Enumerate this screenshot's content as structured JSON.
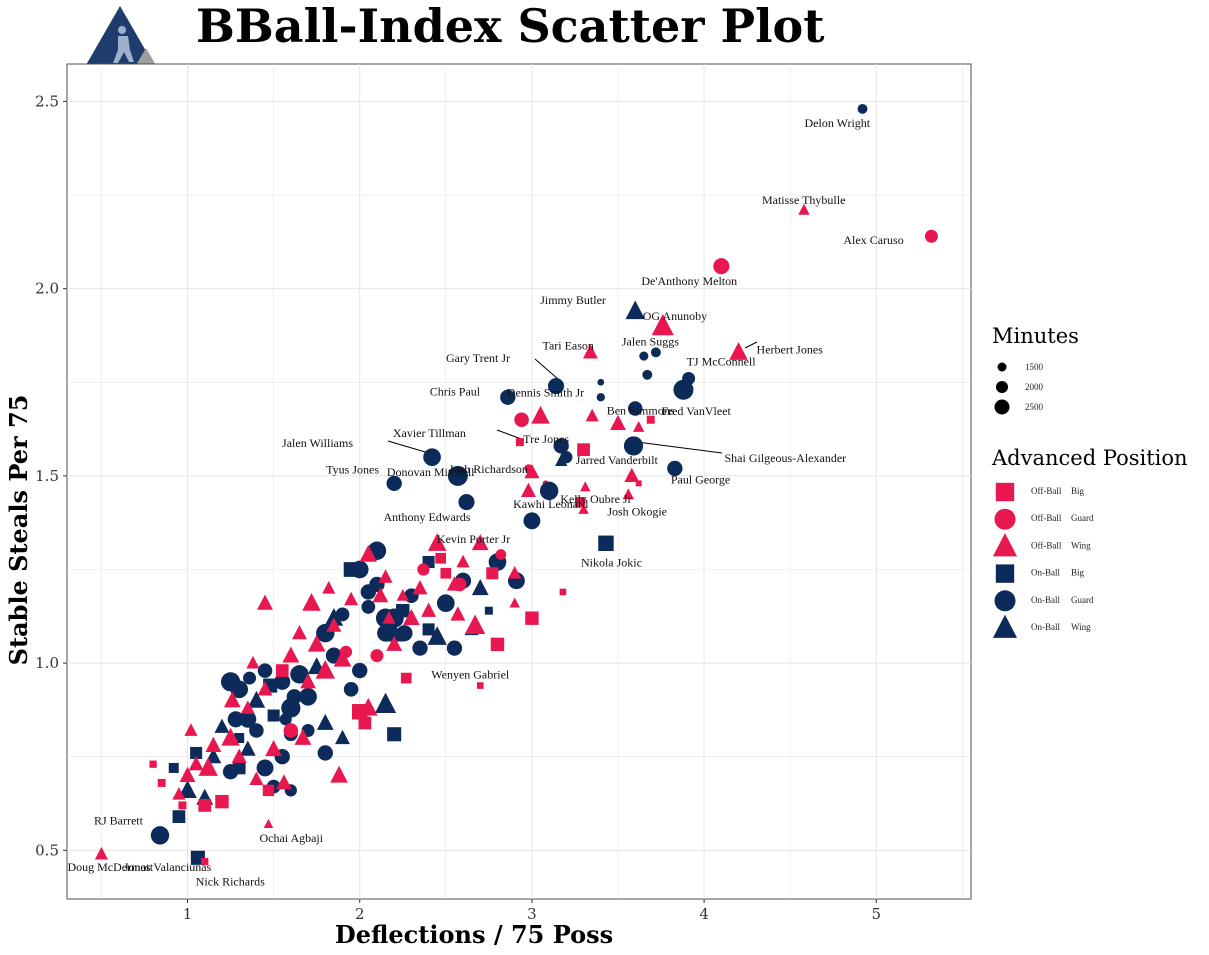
{
  "chart_data": {
    "type": "scatter",
    "title": "BBall-Index Scatter Plot",
    "xlabel": "Deflections / 75 Poss",
    "ylabel": "Stable Steals Per 75",
    "xlim": [
      0.3,
      5.55
    ],
    "ylim": [
      0.37,
      2.6
    ],
    "xticks": [
      1,
      2,
      3,
      4,
      5
    ],
    "yticks": [
      0.5,
      1.0,
      1.5,
      2.0,
      2.5
    ],
    "ytick_labels": [
      "0.5",
      "1.0",
      "1.5",
      "2.0",
      "2.5"
    ],
    "colors": {
      "off": "#E8174F",
      "on": "#0D2B5A",
      "grid": "#E5E5E5",
      "logo_blue": "#1F3C6E",
      "logo_gray": "#9E9E9E"
    },
    "legend_minutes": {
      "title": "Minutes",
      "items": [
        "1500",
        "2000",
        "2500"
      ]
    },
    "legend_position": {
      "title": "Advanced Position",
      "items": [
        {
          "group": "Off-Ball",
          "role": "Big",
          "shape": "square",
          "color": "off"
        },
        {
          "group": "Off-Ball",
          "role": "Guard",
          "shape": "circle",
          "color": "off"
        },
        {
          "group": "Off-Ball",
          "role": "Wing",
          "shape": "triangle",
          "color": "off"
        },
        {
          "group": "On-Ball",
          "role": "Big",
          "shape": "square",
          "color": "on"
        },
        {
          "group": "On-Ball",
          "role": "Guard",
          "shape": "circle",
          "color": "on"
        },
        {
          "group": "On-Ball",
          "role": "Wing",
          "shape": "triangle",
          "color": "on"
        }
      ]
    },
    "labeled_players": [
      {
        "name": "Delon Wright",
        "x": 4.92,
        "y": 2.48,
        "pos": "On-Ball Guard",
        "minutes": 1300
      },
      {
        "name": "Matisse Thybulle",
        "x": 4.58,
        "y": 2.21,
        "pos": "Off-Ball Wing",
        "minutes": 1300
      },
      {
        "name": "Alex Caruso",
        "x": 5.32,
        "y": 2.14,
        "pos": "Off-Ball Guard",
        "minutes": 1700
      },
      {
        "name": "De'Anthony Melton",
        "x": 4.1,
        "y": 2.06,
        "pos": "Off-Ball Guard",
        "minutes": 2100
      },
      {
        "name": "Jimmy Butler",
        "x": 3.6,
        "y": 1.94,
        "pos": "On-Ball Wing",
        "minutes": 2200
      },
      {
        "name": "OG Anunoby",
        "x": 3.76,
        "y": 1.9,
        "pos": "Off-Ball Wing",
        "minutes": 2500
      },
      {
        "name": "Herbert Jones",
        "x": 4.2,
        "y": 1.83,
        "pos": "Off-Ball Wing",
        "minutes": 2100
      },
      {
        "name": "Tari Eason",
        "x": 3.34,
        "y": 1.83,
        "pos": "Off-Ball Wing",
        "minutes": 1700
      },
      {
        "name": "Jalen Suggs",
        "x": 3.72,
        "y": 1.83,
        "pos": "On-Ball Guard",
        "minutes": 1300
      },
      {
        "name": "TJ McConnell",
        "x": 3.91,
        "y": 1.76,
        "pos": "On-Ball Guard",
        "minutes": 1700
      },
      {
        "name": "Gary Trent Jr",
        "x": 3.14,
        "y": 1.74,
        "pos": "On-Ball Guard",
        "minutes": 2100
      },
      {
        "name": "Dennis Smith Jr",
        "x": 3.4,
        "y": 1.71,
        "pos": "On-Ball Guard",
        "minutes": 1100
      },
      {
        "name": "Chris Paul",
        "x": 2.86,
        "y": 1.71,
        "pos": "On-Ball Guard",
        "minutes": 2000
      },
      {
        "name": "Fred VanVleet",
        "x": 3.88,
        "y": 1.73,
        "pos": "On-Ball Guard",
        "minutes": 2600
      },
      {
        "name": "Tre Jones",
        "x": 3.17,
        "y": 1.58,
        "pos": "On-Ball Guard",
        "minutes": 2000
      },
      {
        "name": "Ben Simmons",
        "x": 3.69,
        "y": 1.65,
        "pos": "Off-Ball Big",
        "minutes": 1200
      },
      {
        "name": "Xavier Tillman",
        "x": 2.93,
        "y": 1.59,
        "pos": "Off-Ball Big",
        "minutes": 1200
      },
      {
        "name": "Jalen Williams",
        "x": 2.42,
        "y": 1.55,
        "pos": "On-Ball Guard",
        "minutes": 2300
      },
      {
        "name": "Shai Gilgeous-Alexander",
        "x": 3.59,
        "y": 1.58,
        "pos": "On-Ball Guard",
        "minutes": 2500
      },
      {
        "name": "Josh Richardson",
        "x": 3.0,
        "y": 1.51,
        "pos": "Off-Ball Wing",
        "minutes": 1700
      },
      {
        "name": "Donovan Mitchell",
        "x": 2.57,
        "y": 1.5,
        "pos": "On-Ball Guard",
        "minutes": 2600
      },
      {
        "name": "Jarred Vanderbilt",
        "x": 3.58,
        "y": 1.5,
        "pos": "Off-Ball Wing",
        "minutes": 1700
      },
      {
        "name": "Tyus Jones",
        "x": 2.2,
        "y": 1.48,
        "pos": "On-Ball Guard",
        "minutes": 2000
      },
      {
        "name": "Paul George",
        "x": 3.83,
        "y": 1.52,
        "pos": "On-Ball Guard",
        "minutes": 2000
      },
      {
        "name": "Kawhi Leonard",
        "x": 3.1,
        "y": 1.46,
        "pos": "On-Ball Guard",
        "minutes": 2400
      },
      {
        "name": "Kelly Oubre Jr",
        "x": 3.31,
        "y": 1.47,
        "pos": "Off-Ball Wing",
        "minutes": 1200
      },
      {
        "name": "Anthony Edwards",
        "x": 2.62,
        "y": 1.43,
        "pos": "On-Ball Guard",
        "minutes": 2100
      },
      {
        "name": "Josh Okogie",
        "x": 3.56,
        "y": 1.45,
        "pos": "Off-Ball Wing",
        "minutes": 1300
      },
      {
        "name": "Kevin Porter Jr",
        "x": 3.0,
        "y": 1.38,
        "pos": "On-Ball Guard",
        "minutes": 2200
      },
      {
        "name": "Nikola Jokic",
        "x": 3.43,
        "y": 1.32,
        "pos": "On-Ball Big",
        "minutes": 2300
      },
      {
        "name": "Wenyen Gabriel",
        "x": 2.7,
        "y": 0.94,
        "pos": "Off-Ball Big",
        "minutes": 1000
      },
      {
        "name": "RJ Barrett",
        "x": 0.84,
        "y": 0.54,
        "pos": "On-Ball Guard",
        "minutes": 2400
      },
      {
        "name": "Ochai Agbaji",
        "x": 1.47,
        "y": 0.57,
        "pos": "Off-Ball Wing",
        "minutes": 1100
      },
      {
        "name": "Jonas Valanciunas",
        "x": 1.06,
        "y": 0.48,
        "pos": "On-Ball Big",
        "minutes": 2100
      },
      {
        "name": "Doug McDermott",
        "x": 0.5,
        "y": 0.49,
        "pos": "Off-Ball Wing",
        "minutes": 1500
      },
      {
        "name": "Nick Richards",
        "x": 1.1,
        "y": 0.47,
        "pos": "Off-Ball Big",
        "minutes": 1100
      }
    ],
    "other_players": [
      [
        1.25,
        0.95,
        "ong",
        2500
      ],
      [
        1.3,
        0.93,
        "ong",
        2300
      ],
      [
        1.35,
        0.85,
        "ong",
        2200
      ],
      [
        1.4,
        0.9,
        "onw",
        2000
      ],
      [
        1.45,
        0.98,
        "ong",
        1900
      ],
      [
        1.5,
        0.86,
        "onb",
        1800
      ],
      [
        1.55,
        0.95,
        "ong",
        2100
      ],
      [
        1.6,
        0.88,
        "ong",
        2500
      ],
      [
        1.65,
        0.97,
        "ong",
        2400
      ],
      [
        1.7,
        0.82,
        "ong",
        1700
      ],
      [
        1.75,
        0.99,
        "onw",
        2000
      ],
      [
        1.8,
        1.08,
        "ong",
        2400
      ],
      [
        1.85,
        1.02,
        "ong",
        2100
      ],
      [
        1.9,
        1.13,
        "ong",
        1800
      ],
      [
        1.95,
        0.93,
        "ong",
        1900
      ],
      [
        2.0,
        1.25,
        "ong",
        2300
      ],
      [
        2.05,
        1.19,
        "ong",
        2000
      ],
      [
        2.1,
        1.3,
        "ong",
        2400
      ],
      [
        2.15,
        1.12,
        "ong",
        2500
      ],
      [
        2.2,
        1.08,
        "onw",
        2300
      ],
      [
        2.25,
        1.14,
        "onb",
        2000
      ],
      [
        2.3,
        1.18,
        "ong",
        1900
      ],
      [
        2.35,
        1.04,
        "ong",
        2000
      ],
      [
        2.4,
        1.27,
        "onb",
        1800
      ],
      [
        2.45,
        1.07,
        "onw",
        2200
      ],
      [
        2.5,
        1.16,
        "ong",
        2300
      ],
      [
        2.55,
        1.04,
        "ong",
        2000
      ],
      [
        2.6,
        1.22,
        "ong",
        2100
      ],
      [
        2.7,
        1.2,
        "onw",
        1900
      ],
      [
        2.8,
        1.27,
        "ong",
        2300
      ],
      [
        2.91,
        1.22,
        "ong",
        2200
      ],
      [
        1.95,
        1.25,
        "onb",
        2200
      ],
      [
        2.1,
        1.21,
        "ong",
        2000
      ],
      [
        2.05,
        1.15,
        "ong",
        1800
      ],
      [
        2.2,
        1.12,
        "ong",
        2500
      ],
      [
        2.15,
        1.08,
        "ong",
        2200
      ],
      [
        1.85,
        1.12,
        "onw",
        2100
      ],
      [
        1.7,
        0.91,
        "ong",
        2300
      ],
      [
        1.8,
        0.84,
        "onw",
        1900
      ],
      [
        1.6,
        0.81,
        "ong",
        1800
      ],
      [
        1.55,
        0.75,
        "ong",
        2000
      ],
      [
        1.45,
        0.72,
        "ong",
        2200
      ],
      [
        1.3,
        0.72,
        "onb",
        1900
      ],
      [
        1.25,
        0.71,
        "ong",
        2000
      ],
      [
        1.15,
        0.75,
        "onw",
        1800
      ],
      [
        1.05,
        0.76,
        "onb",
        1800
      ],
      [
        0.92,
        0.72,
        "onb",
        1500
      ],
      [
        1.0,
        0.66,
        "onw",
        2100
      ],
      [
        1.1,
        0.64,
        "onw",
        1900
      ],
      [
        0.95,
        0.59,
        "onb",
        1900
      ],
      [
        1.5,
        0.67,
        "ong",
        1800
      ],
      [
        1.6,
        0.66,
        "ong",
        1600
      ],
      [
        1.8,
        0.76,
        "ong",
        2000
      ],
      [
        1.9,
        0.8,
        "onw",
        1700
      ],
      [
        2.2,
        0.81,
        "onb",
        2100
      ],
      [
        2.15,
        0.89,
        "onw",
        2400
      ],
      [
        1.4,
        0.82,
        "ong",
        1900
      ],
      [
        1.35,
        0.77,
        "onw",
        1800
      ],
      [
        1.2,
        0.83,
        "onw",
        1700
      ],
      [
        1.28,
        0.85,
        "ong",
        2100
      ],
      [
        1.62,
        0.91,
        "ong",
        2000
      ],
      [
        1.48,
        0.94,
        "onb",
        2100
      ],
      [
        1.57,
        0.85,
        "ong",
        1600
      ],
      [
        1.3,
        0.8,
        "onb",
        1500
      ],
      [
        1.36,
        0.96,
        "ong",
        1700
      ],
      [
        2.0,
        0.98,
        "ong",
        2000
      ],
      [
        2.26,
        1.08,
        "ong",
        2100
      ],
      [
        2.4,
        1.09,
        "onb",
        1800
      ],
      [
        2.65,
        1.09,
        "onw",
        1600
      ],
      [
        2.75,
        1.14,
        "onb",
        1200
      ],
      [
        3.6,
        1.68,
        "ong",
        1900
      ],
      [
        3.67,
        1.77,
        "ong",
        1300
      ],
      [
        3.65,
        1.82,
        "ong",
        1200
      ],
      [
        3.4,
        1.75,
        "ong",
        900
      ],
      [
        3.2,
        1.55,
        "ong",
        1600
      ],
      [
        3.17,
        1.54,
        "onw",
        1400
      ],
      [
        1.0,
        0.7,
        "offw",
        1800
      ],
      [
        1.1,
        0.62,
        "offb",
        1900
      ],
      [
        1.2,
        0.63,
        "offb",
        2000
      ],
      [
        1.3,
        0.75,
        "offw",
        1700
      ],
      [
        1.4,
        0.69,
        "offw",
        1600
      ],
      [
        1.5,
        0.77,
        "offw",
        1900
      ],
      [
        1.6,
        0.82,
        "offg",
        1900
      ],
      [
        1.7,
        0.95,
        "offw",
        1800
      ],
      [
        1.8,
        0.98,
        "offw",
        2200
      ],
      [
        1.9,
        1.01,
        "offw",
        2000
      ],
      [
        2.0,
        0.87,
        "offb",
        2300
      ],
      [
        2.05,
        0.88,
        "offw",
        2100
      ],
      [
        2.1,
        1.02,
        "offg",
        1700
      ],
      [
        2.2,
        1.05,
        "offw",
        1800
      ],
      [
        2.3,
        1.12,
        "offw",
        1900
      ],
      [
        2.4,
        1.14,
        "offw",
        1700
      ],
      [
        2.5,
        1.24,
        "offb",
        1600
      ],
      [
        2.6,
        1.27,
        "offw",
        1500
      ],
      [
        2.7,
        1.32,
        "offw",
        1900
      ],
      [
        2.8,
        1.05,
        "offb",
        2000
      ],
      [
        2.9,
        1.16,
        "offw",
        1200
      ],
      [
        3.0,
        1.12,
        "offb",
        2000
      ],
      [
        2.55,
        1.21,
        "offw",
        1700
      ],
      [
        2.45,
        1.32,
        "offw",
        2100
      ],
      [
        2.35,
        1.2,
        "offw",
        1700
      ],
      [
        2.25,
        1.18,
        "offw",
        1400
      ],
      [
        2.15,
        1.23,
        "offw",
        1600
      ],
      [
        2.05,
        1.29,
        "offw",
        2000
      ],
      [
        1.95,
        1.17,
        "offw",
        1600
      ],
      [
        1.85,
        1.1,
        "offw",
        1700
      ],
      [
        1.75,
        1.05,
        "offw",
        2000
      ],
      [
        1.65,
        1.08,
        "offw",
        1700
      ],
      [
        1.55,
        0.98,
        "offb",
        1900
      ],
      [
        1.45,
        0.93,
        "offw",
        1700
      ],
      [
        1.35,
        0.88,
        "offw",
        1600
      ],
      [
        1.25,
        0.8,
        "offw",
        2100
      ],
      [
        1.15,
        0.78,
        "offw",
        1800
      ],
      [
        1.05,
        0.73,
        "offw",
        1700
      ],
      [
        0.95,
        0.65,
        "offw",
        1500
      ],
      [
        0.85,
        0.68,
        "offb",
        1200
      ],
      [
        0.8,
        0.73,
        "offb",
        1100
      ],
      [
        0.97,
        0.62,
        "offb",
        1200
      ],
      [
        1.47,
        0.66,
        "offb",
        1700
      ],
      [
        1.56,
        0.68,
        "offw",
        1800
      ],
      [
        1.67,
        0.8,
        "offw",
        1900
      ],
      [
        1.88,
        0.7,
        "offw",
        2000
      ],
      [
        2.03,
        0.84,
        "offb",
        1900
      ],
      [
        2.27,
        0.96,
        "offb",
        1600
      ],
      [
        2.17,
        1.12,
        "offw",
        1500
      ],
      [
        2.37,
        1.25,
        "offg",
        1600
      ],
      [
        2.47,
        1.28,
        "offb",
        1600
      ],
      [
        2.57,
        1.13,
        "offw",
        1700
      ],
      [
        2.67,
        1.1,
        "offw",
        2300
      ],
      [
        2.77,
        1.24,
        "offb",
        1800
      ],
      [
        2.82,
        1.29,
        "offg",
        1400
      ],
      [
        2.9,
        1.24,
        "offw",
        1500
      ],
      [
        3.3,
        1.41,
        "offw",
        1200
      ],
      [
        3.28,
        1.43,
        "offb",
        1500
      ],
      [
        3.5,
        1.64,
        "offw",
        1800
      ],
      [
        3.62,
        1.48,
        "offb",
        900
      ],
      [
        3.05,
        1.66,
        "offw",
        2100
      ],
      [
        3.08,
        1.48,
        "offg",
        800
      ],
      [
        3.35,
        1.66,
        "offw",
        1500
      ],
      [
        3.62,
        1.63,
        "offw",
        1300
      ],
      [
        2.94,
        1.65,
        "offg",
        1900
      ],
      [
        3.3,
        1.57,
        "offb",
        1900
      ],
      [
        3.18,
        1.19,
        "offb",
        1000
      ],
      [
        2.98,
        1.46,
        "offw",
        1700
      ],
      [
        2.98,
        1.52,
        "offg",
        1100
      ],
      [
        2.58,
        1.21,
        "offg",
        1800
      ],
      [
        1.72,
        1.16,
        "offw",
        2100
      ],
      [
        1.82,
        1.2,
        "offw",
        1500
      ],
      [
        1.92,
        1.03,
        "offg",
        1600
      ],
      [
        2.12,
        1.18,
        "offw",
        1800
      ],
      [
        1.6,
        1.02,
        "offw",
        1900
      ],
      [
        1.45,
        1.16,
        "offw",
        1800
      ],
      [
        1.38,
        1.0,
        "offw",
        1500
      ],
      [
        1.26,
        0.9,
        "offw",
        1900
      ],
      [
        1.12,
        0.72,
        "offw",
        2200
      ],
      [
        1.02,
        0.82,
        "offw",
        1500
      ]
    ]
  }
}
